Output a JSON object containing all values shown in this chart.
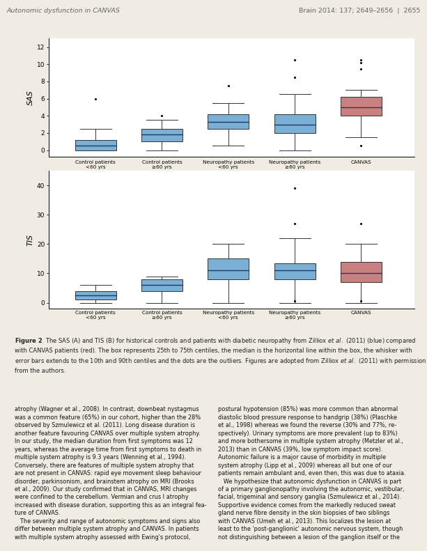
{
  "page_bg": "#f0ece3",
  "figure_bg": "#ffffff",
  "header_left": "Autonomic dysfunction in CANVAS",
  "header_right": "Brain 2014: 137; 2649–2656  |  2655",
  "blue_color": "#7bafd4",
  "red_color": "#c98080",
  "median_color": "#1a3a6a",
  "whisker_color": "#333333",
  "box_edge_color": "#333333",
  "categories_line1": [
    "Control patients",
    "Control patients",
    "Neuropathy patients",
    "Neuropathy patients",
    "CANVAS"
  ],
  "categories_line2": [
    "<60 yrs",
    "≥60 yrs",
    "<60 yrs",
    "≥60 yrs",
    ""
  ],
  "sas": {
    "ylabel": "SAS",
    "ylim": [
      -0.8,
      13
    ],
    "yticks": [
      0,
      2,
      4,
      6,
      8,
      10,
      12
    ],
    "q1": [
      0.0,
      1.0,
      2.5,
      2.0,
      4.0
    ],
    "median": [
      0.5,
      1.8,
      3.3,
      3.0,
      5.0
    ],
    "q3": [
      1.2,
      2.5,
      4.2,
      4.2,
      6.2
    ],
    "whislo": [
      0.0,
      0.0,
      0.5,
      0.0,
      1.5
    ],
    "whishi": [
      2.5,
      3.5,
      5.5,
      6.5,
      7.0
    ],
    "fliers_high": [
      [
        6.0
      ],
      [
        4.0
      ],
      [
        7.5
      ],
      [
        8.5,
        10.5
      ],
      [
        9.5,
        10.2,
        10.5
      ]
    ],
    "fliers_low": [
      [],
      [],
      [],
      [],
      [
        0.5
      ]
    ]
  },
  "tis": {
    "ylabel": "TIS",
    "ylim": [
      -2,
      45
    ],
    "yticks": [
      0,
      10,
      20,
      30,
      40
    ],
    "q1": [
      1.0,
      4.0,
      8.0,
      8.0,
      7.0
    ],
    "median": [
      2.5,
      6.0,
      11.0,
      11.0,
      10.0
    ],
    "q3": [
      4.0,
      8.0,
      15.0,
      13.5,
      14.0
    ],
    "whislo": [
      0.0,
      0.0,
      0.0,
      0.0,
      0.0
    ],
    "whishi": [
      6.0,
      9.0,
      20.0,
      22.0,
      20.0
    ],
    "fliers_high": [
      [],
      [],
      [],
      [
        39.0
      ],
      []
    ],
    "fliers_low": [
      [],
      [],
      [],
      [
        0.5
      ],
      [
        0.5
      ]
    ],
    "fliers_mid": [
      [],
      [],
      [],
      [
        27.0
      ],
      [
        27.0
      ]
    ]
  },
  "col1_text": "atrophy (Wagner et al., 2008). In contrast, downbeat nystagmus\nwas a common feature (65%) in our cohort, higher than the 28%\nobserved by Szmulewicz et al. (2011). Long disease duration is\nanother feature favouring CANVAS over multiple system atrophy.\nIn our study, the median duration from first symptoms was 12\nyears, whereas the average time from first symptoms to death in\nmultiple system atrophy is 9.3 years (Wenning et al., 1994).\nConversely, there are features of multiple system atrophy that\nare not present in CANVAS: rapid eye movement sleep behaviour\ndisorder, parkinsonism, and brainstem atrophy on MRI (Brooks\net al., 2009). Our study confirmed that in CANVAS, MRI changes\nwere confined to the cerebellum. Vermian and crus I atrophy\nincreased with disease duration, supporting this as an integral fea-\nture of CANVAS.\n   The severity and range of autonomic symptoms and signs also\ndiffer between multiple system atrophy and CANVAS. In patients\nwith multiple system atrophy assessed with Ewing's protocol,",
  "col2_text": "postural hypotension (85%) was more common than abnormal\ndiastolic blood pressure response to handgrip (38%) (Plaschke\net al., 1998) whereas we found the reverse (30% and 77%, re-\nspectively). Urinary symptoms are more prevalent (up to 83%)\nand more bothersome in multiple system atrophy (Metzler et al.,\n2013) than in CANVAS (39%, low symptom impact score).\nAutonomic failure is a major cause of morbidity in multiple\nsystem atrophy (Lipp et al., 2009) whereas all but one of our\npatients remain ambulant and, even then, this was due to ataxia.\n   We hypothesize that autonomic dysfunction in CANVAS is part\nof a primary ganglionopathy involving the autonomic, vestibular,\nfacial, trigeminal and sensory ganglia (Szmulewicz et al., 2014).\nSupportive evidence comes from the markedly reduced sweat\ngland nerve fibre density in the skin biopsies of two siblings\nwith CANVAS (Umeh et al., 2013). This localizes the lesion at\nleast to the 'post-ganglionic' autonomic nervous system, though\nnot distinguishing between a lesion of the ganglion itself or the"
}
